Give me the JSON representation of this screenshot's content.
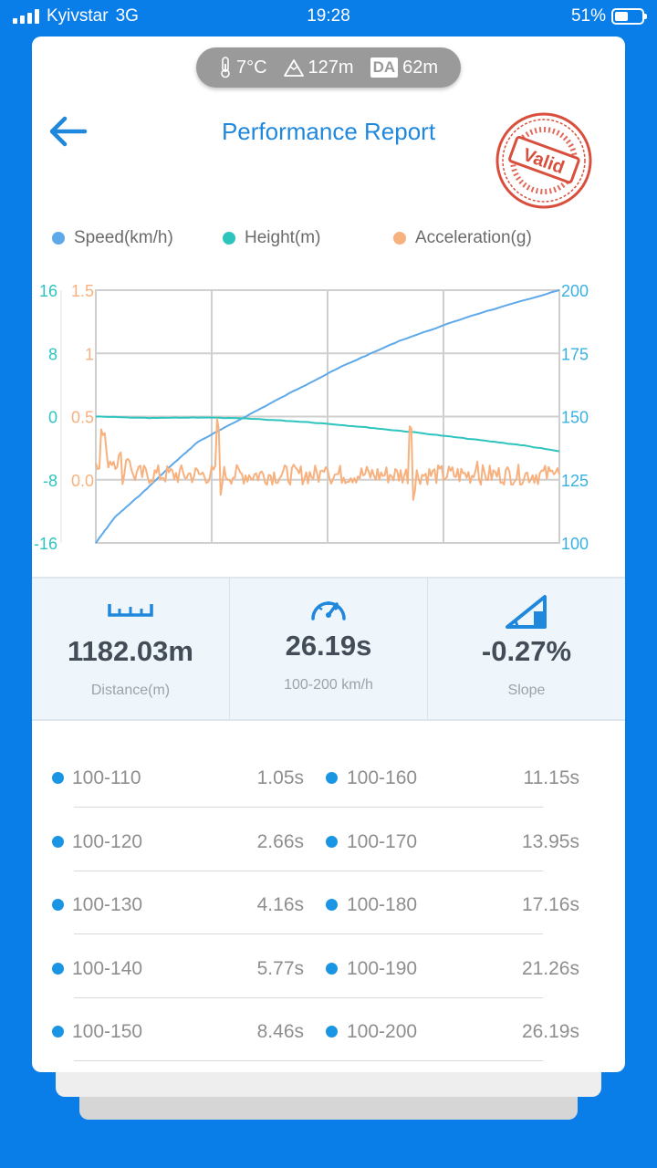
{
  "status_bar": {
    "carrier": "Kyivstar",
    "network": "3G",
    "time": "19:28",
    "battery": "51%",
    "battery_level": 0.51
  },
  "conditions": {
    "temperature": "7°C",
    "altitude": "127m",
    "da_label": "DA",
    "density_altitude": "62m"
  },
  "header": {
    "title": "Performance Report",
    "stamp_text": "Valid"
  },
  "legend": [
    {
      "label": "Speed(km/h)",
      "color": "#5da9ea"
    },
    {
      "label": "Height(m)",
      "color": "#2cc4bd"
    },
    {
      "label": "Acceleration(g)",
      "color": "#f7b17e"
    }
  ],
  "chart_data": {
    "type": "line",
    "grid": true,
    "x_range": [
      0,
      26.19
    ],
    "axes": {
      "height_left": {
        "ticks": [
          "16",
          "8",
          "0",
          "-8",
          "-16"
        ],
        "range": [
          -16,
          16
        ],
        "color": "#2cc4bd"
      },
      "accel_left": {
        "ticks": [
          "1.5",
          "1",
          "0.5",
          "0.0"
        ],
        "range": [
          -0.5,
          1.5
        ],
        "color": "#f7b17e"
      },
      "speed_right": {
        "ticks": [
          "200",
          "175",
          "150",
          "125",
          "100"
        ],
        "range": [
          100,
          200
        ],
        "color": "#39b1e0"
      }
    },
    "series": [
      {
        "name": "Speed(km/h)",
        "axis": "speed_right",
        "color": "#5da9ea",
        "points": [
          [
            0,
            100
          ],
          [
            1.05,
            110
          ],
          [
            2.66,
            120
          ],
          [
            4.16,
            130
          ],
          [
            5.77,
            140
          ],
          [
            8.46,
            150
          ],
          [
            11.15,
            160
          ],
          [
            13.95,
            170
          ],
          [
            17.16,
            180
          ],
          [
            21.26,
            190
          ],
          [
            26.19,
            200
          ]
        ]
      },
      {
        "name": "Height(m)",
        "axis": "height_left",
        "color": "#2cc4bd",
        "points": [
          [
            0,
            0
          ],
          [
            3,
            -0.2
          ],
          [
            6,
            -0.1
          ],
          [
            9,
            -0.3
          ],
          [
            12,
            -0.7
          ],
          [
            15,
            -1.3
          ],
          [
            18,
            -2.0
          ],
          [
            21,
            -2.8
          ],
          [
            24,
            -3.6
          ],
          [
            26.19,
            -4.4
          ]
        ]
      },
      {
        "name": "Acceleration(g)",
        "axis": "accel_left",
        "color": "#f7b17e",
        "baseline": 0.04,
        "spikes": [
          [
            0.4,
            0.2
          ],
          [
            1.8,
            0.15
          ],
          [
            6.9,
            0.45
          ],
          [
            7,
            -0.15
          ],
          [
            13,
            0.1
          ],
          [
            17.8,
            0.4
          ],
          [
            18,
            -0.12
          ],
          [
            21.5,
            0.1
          ],
          [
            26,
            0.08
          ]
        ]
      }
    ]
  },
  "stats": [
    {
      "value": "1182.03m",
      "label": "Distance(m)"
    },
    {
      "value": "26.19s",
      "label": "100-200 km/h"
    },
    {
      "value": "-0.27%",
      "label": "Slope"
    }
  ],
  "splits": [
    {
      "range": "100-110",
      "time": "1.05s"
    },
    {
      "range": "100-120",
      "time": "2.66s"
    },
    {
      "range": "100-130",
      "time": "4.16s"
    },
    {
      "range": "100-140",
      "time": "5.77s"
    },
    {
      "range": "100-150",
      "time": "8.46s"
    },
    {
      "range": "100-160",
      "time": "11.15s"
    },
    {
      "range": "100-170",
      "time": "13.95s"
    },
    {
      "range": "100-180",
      "time": "17.16s"
    },
    {
      "range": "100-190",
      "time": "21.26s"
    },
    {
      "range": "100-200",
      "time": "26.19s"
    }
  ]
}
